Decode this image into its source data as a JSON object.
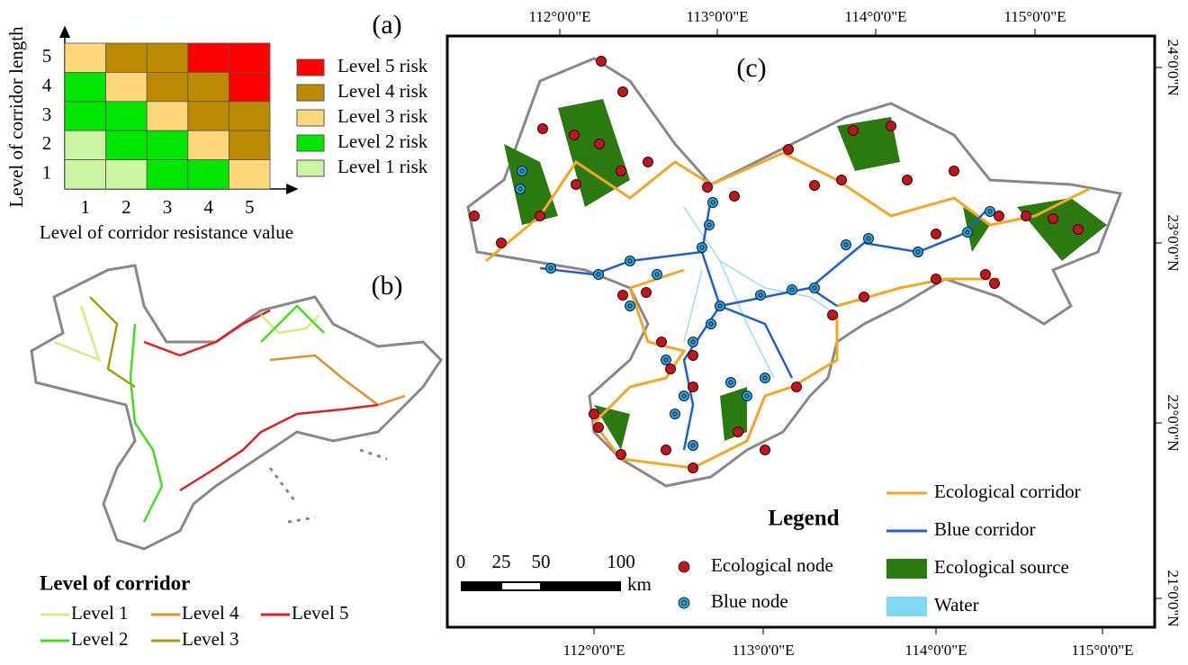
{
  "panel_a": {
    "label": "(a)",
    "y_label": "Level of corridor length",
    "x_label": "Level of corridor resistance value",
    "x_ticks": [
      1,
      2,
      3,
      4,
      5
    ],
    "y_ticks": [
      5,
      4,
      3,
      2,
      1
    ],
    "matrix": [
      [
        3,
        4,
        4,
        5,
        5
      ],
      [
        2,
        3,
        4,
        4,
        5
      ],
      [
        2,
        2,
        3,
        4,
        4
      ],
      [
        1,
        2,
        2,
        3,
        4
      ],
      [
        1,
        1,
        2,
        2,
        3
      ]
    ],
    "legend": [
      {
        "label": "Level 5 risk",
        "color": "#ff0000"
      },
      {
        "label": "Level 4 risk",
        "color": "#bb8a00"
      },
      {
        "label": "Level 3 risk",
        "color": "#ffd77a"
      },
      {
        "label": "Level 2 risk",
        "color": "#00e600"
      },
      {
        "label": "Level 1 risk",
        "color": "#ccf5a3"
      }
    ]
  },
  "panel_b": {
    "label": "(b)",
    "legend_title": "Level of corridor",
    "legend": [
      {
        "label": "Level 1",
        "color": "#ccf07a"
      },
      {
        "label": "Level 4",
        "color": "#e0902a"
      },
      {
        "label": "Level 5",
        "color": "#e02020"
      },
      {
        "label": "Level 2",
        "color": "#40e020"
      },
      {
        "label": "Level 3",
        "color": "#a89a10"
      }
    ]
  },
  "panel_c": {
    "label": "(c)",
    "top_labels": [
      "112°0'0\"E",
      "113°0'0\"E",
      "114°0'0\"E",
      "115°0'0\"E"
    ],
    "bottom_labels": [
      "112°0'0\"E",
      "113°0'0\"E",
      "114°0'0\"E",
      "115°0'0\"E"
    ],
    "right_labels": [
      "24°0'0\"N",
      "23°0'0\"N",
      "22°0'0\"N",
      "21°0'0\"N"
    ],
    "legend_title": "Legend",
    "legend": [
      {
        "label": "Ecological node",
        "color": "#c0141e"
      },
      {
        "label": "Blue node",
        "color": "#2fa0d0"
      },
      {
        "label": "Ecological corridor",
        "color": "#f5a623"
      },
      {
        "label": "Blue corridor",
        "color": "#1f5fd0"
      },
      {
        "label": "Ecological source",
        "color": "#2a7a10"
      },
      {
        "label": "Water",
        "color": "#7fd8f5"
      }
    ],
    "scale_labels": [
      "0",
      "25",
      "50",
      "100"
    ],
    "scale_unit": "km"
  }
}
